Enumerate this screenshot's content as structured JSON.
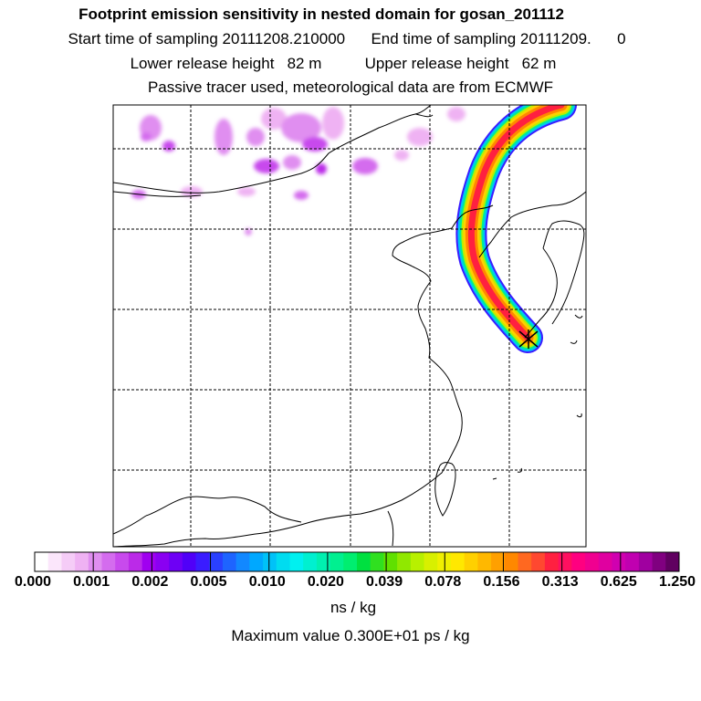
{
  "title": {
    "line1": "Footprint emission sensitivity in nested domain for gosan_201112",
    "line2": "Start time of sampling 20111208.210000      End time of sampling 20111209.      0",
    "line3": "Lower release height   82 m          Upper release height   62 m",
    "line4": "Passive tracer used, meteorological data are from ECMWF"
  },
  "colorbar": {
    "labels": [
      "0.000",
      "0.001",
      "0.002",
      "0.005",
      "0.010",
      "0.020",
      "0.039",
      "0.078",
      "0.156",
      "0.313",
      "0.625",
      "1.250"
    ],
    "colors": [
      "#ffffff",
      "#fbe6fb",
      "#f5ccf7",
      "#efb2f3",
      "#e08ef0",
      "#d46cee",
      "#c84aed",
      "#bb2ae8",
      "#a000f0",
      "#8a00f2",
      "#6e00f5",
      "#5000f8",
      "#3a1cff",
      "#2a40ff",
      "#1e64ff",
      "#1288ff",
      "#00a8ff",
      "#00c2f8",
      "#00dcf0",
      "#00f0f0",
      "#00f0d0",
      "#00f0b0",
      "#00f090",
      "#00ee70",
      "#00e040",
      "#30e020",
      "#60e000",
      "#90e800",
      "#b8f000",
      "#d8f000",
      "#f0f000",
      "#ffe800",
      "#ffd000",
      "#ffb800",
      "#ffa000",
      "#ff8800",
      "#ff6820",
      "#ff4830",
      "#ff2040",
      "#ff1060",
      "#ff0080",
      "#f00090",
      "#e000a0",
      "#d000b0",
      "#c000b0",
      "#a000a0",
      "#800080",
      "#600060"
    ],
    "unit": "ns / kg"
  },
  "max_value": "Maximum value  0.300E+01 ps / kg",
  "station": {
    "name": "gosan",
    "marker": "x-mark-icon"
  }
}
